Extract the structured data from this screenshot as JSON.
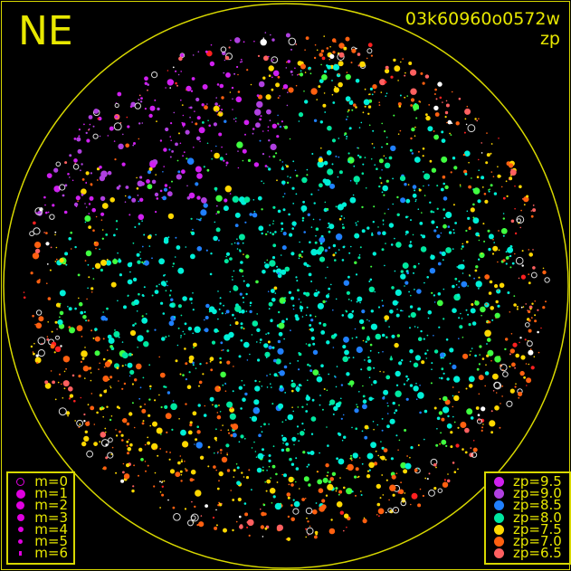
{
  "header": {
    "direction": "NE",
    "frame_id": "03k60960o0572w",
    "mode": "zp"
  },
  "chart_data": {
    "type": "scatter",
    "title": "03k60960o0572w",
    "subtitle": "zp",
    "description_grid": false,
    "horizon_circle_color": "#d8d800",
    "size_legend": [
      {
        "label": "m=0",
        "style": "open"
      },
      {
        "label": "m=1",
        "style": "filled"
      },
      {
        "label": "m=2",
        "style": "filled"
      },
      {
        "label": "m=3",
        "style": "filled"
      },
      {
        "label": "m=4",
        "style": "filled"
      },
      {
        "label": "m=5",
        "style": "filled"
      },
      {
        "label": "m=6",
        "style": "filled"
      }
    ],
    "size_legend_color": "#e000e0",
    "color_legend": [
      {
        "label": "zp=9.5",
        "color": "#d020f0"
      },
      {
        "label": "zp=9.0",
        "color": "#b040e0"
      },
      {
        "label": "zp=8.5",
        "color": "#2080ff"
      },
      {
        "label": "zp=8.0",
        "color": "#00e8a0"
      },
      {
        "label": "zp=7.5",
        "color": "#ffd800"
      },
      {
        "label": "zp=7.0",
        "color": "#ff6010"
      },
      {
        "label": "zp=6.5",
        "color": "#ff6060"
      }
    ],
    "legend_placement": [
      "bottom-left",
      "bottom-right"
    ]
  }
}
